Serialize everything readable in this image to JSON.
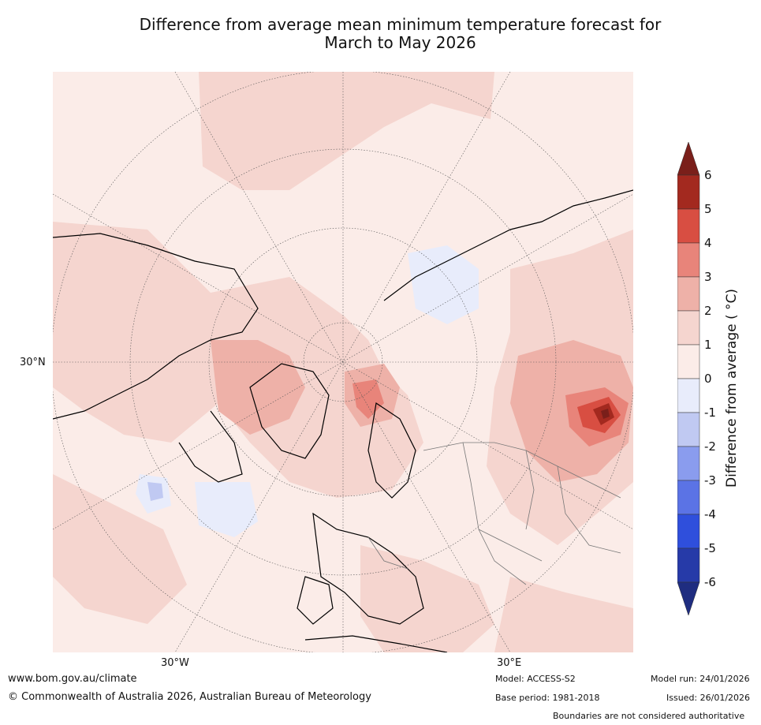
{
  "title_line1": "Difference from average mean minimum temperature forecast for",
  "title_line2": "March to May 2026",
  "axis_labels": {
    "lat_30n": "30°N",
    "lon_30w": "30°W",
    "lon_30e": "30°E"
  },
  "colorbar": {
    "label": "Difference from average ( °C)",
    "ticks": [
      "6",
      "5",
      "4",
      "3",
      "2",
      "1",
      "0",
      "-1",
      "-2",
      "-3",
      "-4",
      "-5",
      "-6"
    ],
    "colors": [
      "#7a1f1a",
      "#a3291f",
      "#d84e42",
      "#e8847a",
      "#eeb1a8",
      "#f5d5cf",
      "#fbece8",
      "#e8ecfb",
      "#c0c9f2",
      "#8a9cee",
      "#5b73e5",
      "#2f4fdc",
      "#263aa8",
      "#1f2d80"
    ]
  },
  "footer": {
    "website": "www.bom.gov.au/climate",
    "copyright": "© Commonwealth of Australia 2026, Australian Bureau of Meteorology",
    "model": "Model: ACCESS-S2",
    "base_period": "Base period: 1981-2018",
    "model_run": "Model run: 24/01/2026",
    "issued": "Issued: 26/01/2026",
    "disclaimer": "Boundaries are not considered authoritative"
  }
}
